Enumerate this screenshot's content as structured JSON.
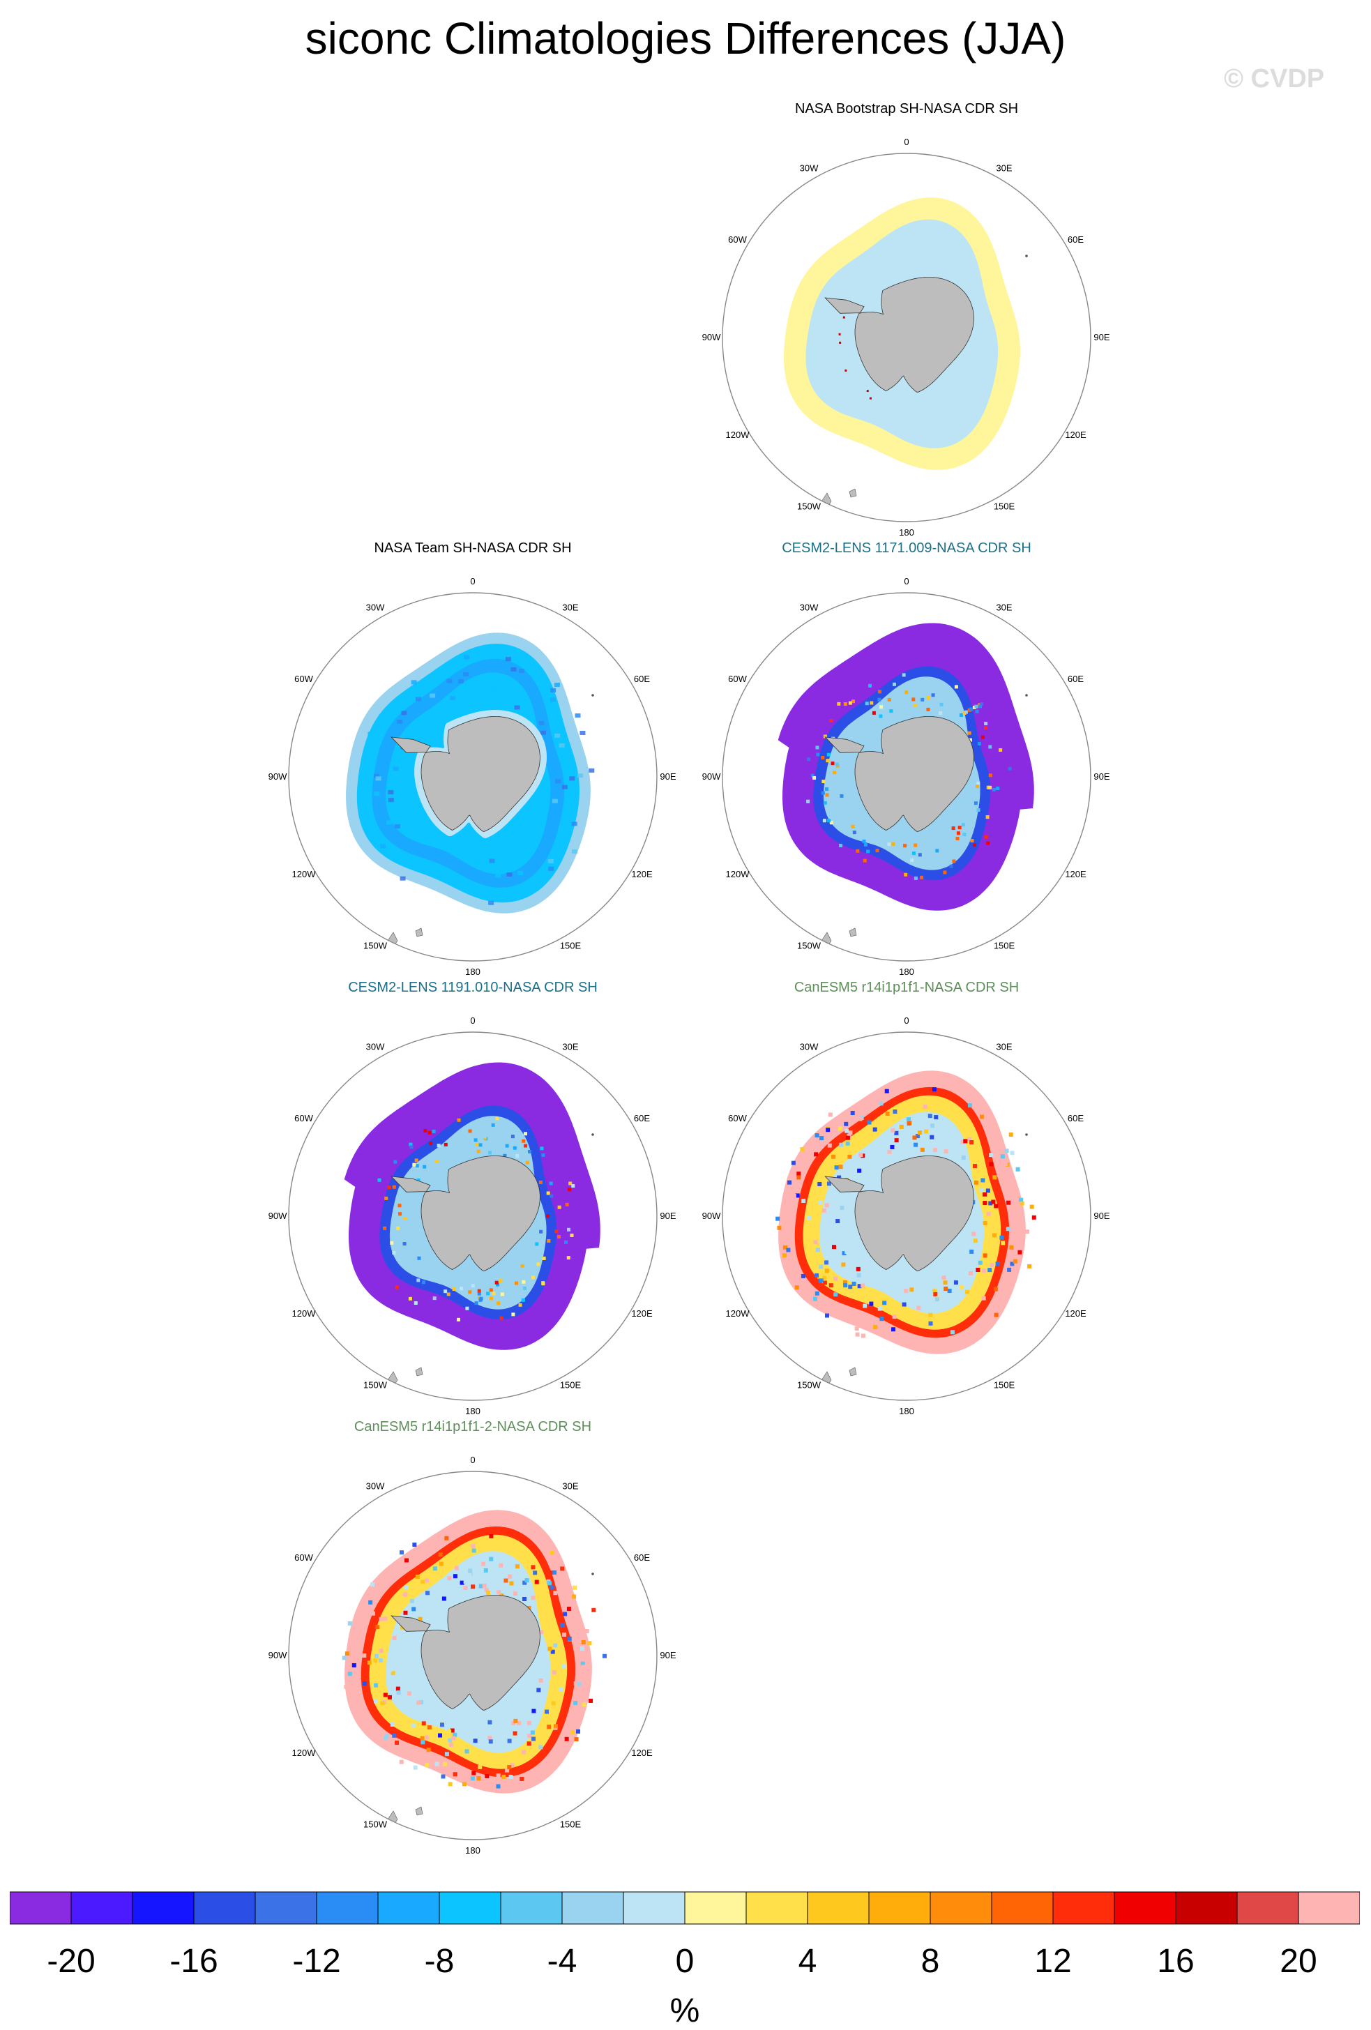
{
  "title": "siconc Climatologies Differences (JJA)",
  "watermark": "© CVDP",
  "lon_labels": {
    "l0": "0",
    "l30e": "30E",
    "l60e": "60E",
    "l90e": "90E",
    "l120e": "120E",
    "l150e": "150E",
    "l180": "180",
    "l150w": "150W",
    "l120w": "120W",
    "l90w": "90W",
    "l60w": "60W",
    "l30w": "30W"
  },
  "panels": [
    {
      "title": "NASA Bootstrap SH-NASA CDR SH",
      "title_color": "#000000",
      "pattern": "bootstrap"
    },
    {
      "title": "NASA Team SH-NASA CDR SH",
      "title_color": "#000000",
      "pattern": "team"
    },
    {
      "title": "CESM2-LENS 1171.009-NASA CDR SH",
      "title_color": "#1a6f8a",
      "pattern": "cesm"
    },
    {
      "title": "CESM2-LENS 1191.010-NASA CDR SH",
      "title_color": "#1a6f8a",
      "pattern": "cesm"
    },
    {
      "title": "CanESM5 r14i1p1f1-NASA CDR SH",
      "title_color": "#5e8f5a",
      "pattern": "canesm"
    },
    {
      "title": "CanESM5 r14i1p1f1-2-NASA CDR SH",
      "title_color": "#5e8f5a",
      "pattern": "canesm"
    }
  ],
  "colorbar": {
    "unit": "%",
    "colors": [
      "#8a2be2",
      "#4b1aff",
      "#1515ff",
      "#2b4fe6",
      "#3b72e8",
      "#2a8cf5",
      "#19aaff",
      "#0cc4ff",
      "#5cc8f2",
      "#9ad3f0",
      "#bde4f5",
      "#fff59a",
      "#ffe04a",
      "#ffc81e",
      "#ffad0a",
      "#ff8c0a",
      "#ff6405",
      "#ff2d0a",
      "#f00000",
      "#c80000",
      "#e04848",
      "#ffb4b4"
    ],
    "tick_labels": [
      "-20",
      "-16",
      "-12",
      "-8",
      "-4",
      "0",
      "4",
      "8",
      "12",
      "16",
      "20"
    ],
    "tick_values": [
      -20,
      -16,
      -12,
      -8,
      -4,
      0,
      4,
      8,
      12,
      16,
      20
    ]
  }
}
